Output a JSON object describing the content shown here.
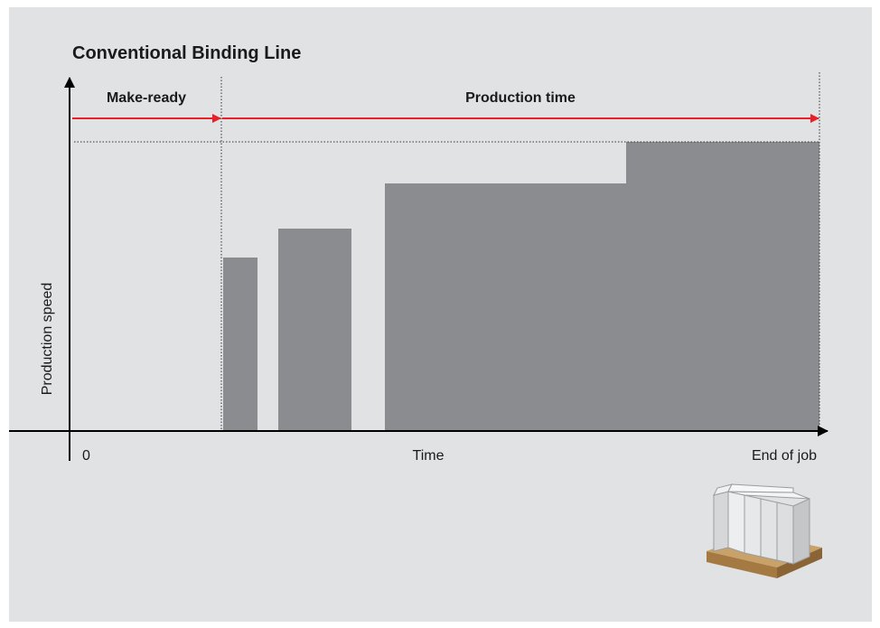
{
  "header": {
    "title": "Conventional Binding Line"
  },
  "phases": {
    "make_ready": "Make-ready",
    "production": "Production time"
  },
  "axes": {
    "y_label": "Production speed",
    "x_start": "0",
    "x_middle": "Time",
    "x_end": "End of job"
  }
}
